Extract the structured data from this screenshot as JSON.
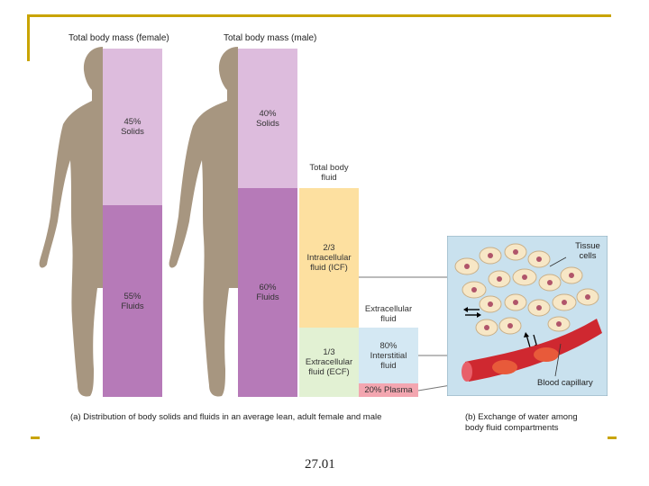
{
  "headers": {
    "female": "Total body mass (female)",
    "male": "Total body mass (male)"
  },
  "female": {
    "solids": "45%\nSolids",
    "fluids": "55%\nFluids"
  },
  "male": {
    "solids": "40%\nSolids",
    "fluids": "60%\nFluids"
  },
  "fluid": {
    "total_label": "Total body\nfluid",
    "icf": "2/3\nIntracellular\nfluid (ICF)",
    "ecf": "1/3\nExtracellular\nfluid (ECF)",
    "ecf_label": "Extracellular\nfluid",
    "interstitial": "80%\nInterstitial\nfluid",
    "plasma": "20% Plasma"
  },
  "panel_b": {
    "tissue_label": "Tissue\ncells",
    "capillary_label": "Blood capillary"
  },
  "captions": {
    "a": "(a) Distribution of body solids and fluids in an average lean, adult female and male",
    "b": "(b) Exchange of water among\nbody fluid compartments"
  },
  "slide_number": "27.01",
  "colors": {
    "frame": "#c9a400",
    "silhouette": "#a79680",
    "solids": "#ddbcdd",
    "fluids": "#b67ab8",
    "icf": "#fde0a0",
    "ecf": "#e2f1d3",
    "interstitial": "#d4e8f3",
    "plasma": "#f3a6b0",
    "panel_bg": "#c9e1ee",
    "cell": "#f7e7c6",
    "vessel": "#cf2830"
  }
}
